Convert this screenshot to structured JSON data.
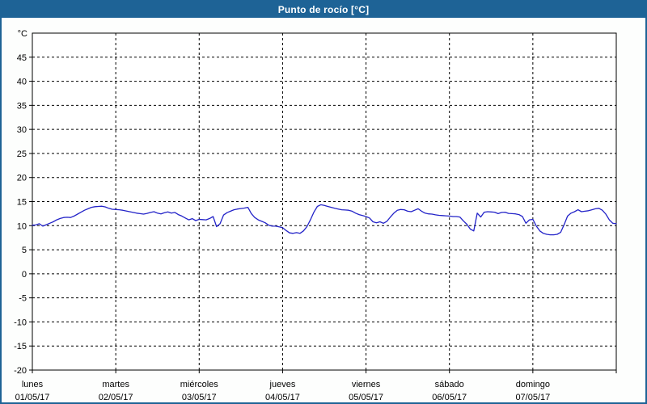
{
  "window": {
    "title": "Punto de rocío [°C]",
    "titlebar_color": "#1E6396",
    "border_color": "#1E6396",
    "background_color": "#FDFEFD"
  },
  "chart_data": {
    "type": "line",
    "title": "Punto de rocío [°C]",
    "y_unit_label": "°C",
    "ylim": [
      -20,
      50
    ],
    "ytick_start": 45,
    "ytick_step": -5,
    "ytick_end": -20,
    "grid": "dashed-black",
    "legend": "none",
    "line_color": "#2323C8",
    "x_categories": [
      {
        "name": "lunes",
        "date": "01/05/17"
      },
      {
        "name": "martes",
        "date": "02/05/17"
      },
      {
        "name": "miércoles",
        "date": "03/05/17"
      },
      {
        "name": "jueves",
        "date": "04/05/17"
      },
      {
        "name": "viernes",
        "date": "05/05/17"
      },
      {
        "name": "sábado",
        "date": "06/05/17"
      },
      {
        "name": "domingo",
        "date": "07/05/17"
      }
    ],
    "series": [
      {
        "name": "Punto de rocío",
        "unit": "°C",
        "hours_per_day": 24,
        "values_by_day": [
          [
            10.1,
            10.15,
            10.4,
            9.9,
            10.2,
            10.5,
            10.8,
            11.2,
            11.5,
            11.7,
            11.75,
            11.7,
            12.0,
            12.4,
            12.8,
            13.2,
            13.5,
            13.8,
            13.95,
            14.0,
            14.05,
            13.9,
            13.6,
            13.4
          ],
          [
            13.35,
            13.3,
            13.2,
            13.05,
            12.9,
            12.75,
            12.6,
            12.5,
            12.4,
            12.55,
            12.75,
            12.9,
            12.6,
            12.45,
            12.7,
            12.85,
            12.6,
            12.75,
            12.3,
            12.0,
            11.6,
            11.2,
            11.45,
            11.05
          ],
          [
            11.3,
            11.25,
            11.2,
            11.5,
            11.9,
            9.8,
            10.4,
            12.2,
            12.7,
            13.0,
            13.3,
            13.45,
            13.55,
            13.65,
            13.8,
            12.5,
            11.7,
            11.2,
            10.9,
            10.6,
            10.1,
            9.9,
            9.9,
            9.75
          ],
          [
            9.6,
            9.0,
            8.5,
            8.4,
            8.55,
            8.4,
            8.9,
            9.8,
            11.2,
            12.8,
            14.0,
            14.35,
            14.2,
            14.0,
            13.8,
            13.6,
            13.45,
            13.3,
            13.25,
            13.2,
            13.0,
            12.6,
            12.3,
            12.1
          ],
          [
            11.9,
            11.6,
            10.8,
            10.6,
            10.8,
            10.5,
            10.9,
            11.8,
            12.6,
            13.2,
            13.35,
            13.3,
            13.0,
            12.9,
            13.2,
            13.5,
            13.0,
            12.6,
            12.45,
            12.4,
            12.25,
            12.15,
            12.1,
            12.05
          ],
          [
            12.0,
            11.9,
            11.9,
            11.8,
            11.0,
            10.3,
            9.3,
            8.9,
            12.6,
            11.8,
            12.8,
            12.9,
            12.85,
            12.8,
            12.5,
            12.75,
            12.8,
            12.55,
            12.5,
            12.45,
            12.3,
            11.9,
            10.5,
            11.2
          ],
          [
            11.3,
            9.9,
            8.9,
            8.4,
            8.2,
            8.1,
            8.1,
            8.2,
            8.6,
            10.2,
            12.0,
            12.6,
            12.9,
            13.3,
            12.9,
            13.0,
            13.1,
            13.3,
            13.5,
            13.6,
            13.2,
            12.4,
            11.2,
            10.5
          ]
        ],
        "end_value": 10.4
      }
    ]
  }
}
